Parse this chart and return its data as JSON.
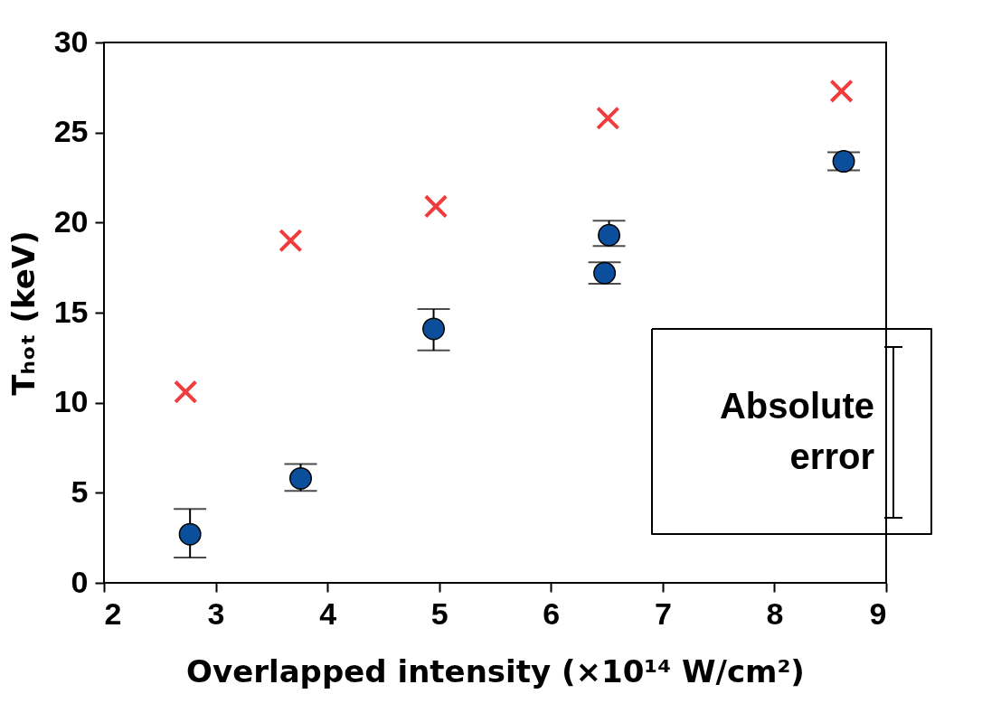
{
  "chart_data": {
    "type": "scatter",
    "xlabel": "Overlapped intensity (×10¹⁴ W/cm²)",
    "ylabel": "Tₕₒₜ (keV)",
    "xlim": [
      2,
      9
    ],
    "xticks": [
      2,
      3,
      4,
      5,
      6,
      7,
      8,
      9
    ],
    "ylim": [
      0,
      30
    ],
    "yticks": [
      0,
      5,
      10,
      15,
      20,
      25,
      30
    ],
    "series": [
      {
        "color": "#0b4f9c",
        "marker": "circle",
        "x": [
          2.77,
          3.76,
          4.95,
          6.48,
          6.52,
          8.62
        ],
        "values": [
          2.7,
          5.8,
          14.1,
          17.2,
          19.3,
          23.4
        ],
        "errors": [
          [
            1.4,
            4.1
          ],
          [
            5.1,
            6.6
          ],
          [
            12.9,
            15.2
          ],
          [
            16.6,
            17.8
          ],
          [
            18.7,
            20.1
          ],
          [
            22.9,
            23.9
          ]
        ]
      },
      {
        "color": "#f03c3c",
        "marker": "cross",
        "x": [
          2.73,
          3.67,
          4.97,
          6.51,
          8.6
        ],
        "values": [
          10.6,
          19.0,
          20.9,
          25.8,
          27.3
        ]
      }
    ],
    "annotations": [
      "Absolute error"
    ]
  }
}
